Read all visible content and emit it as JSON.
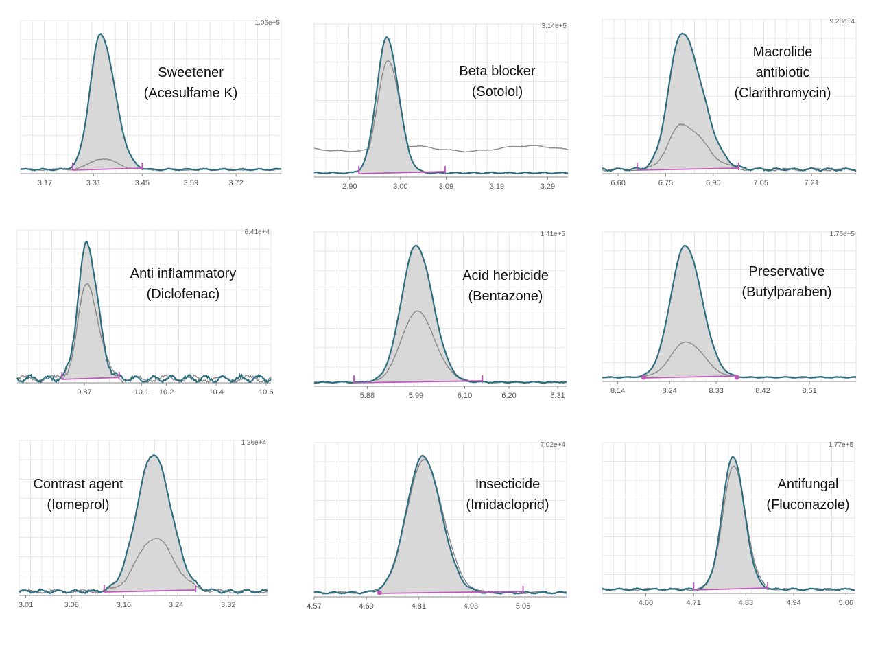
{
  "colors": {
    "trace_primary": "#2e6e80",
    "trace_secondary": "#8a8a8a",
    "peak_fill": "#d8d8d8",
    "baseline": "#c05ab8",
    "grid": "#e6e6e6",
    "axis": "#888888"
  },
  "chart_data": [
    {
      "type": "line",
      "title_lines": [
        "Sweetener",
        "(Acesulfame K)"
      ],
      "ymax_label": "1.06e+5",
      "xlim": [
        3.1,
        3.85
      ],
      "xticks": [
        "3.17",
        "3.31",
        "3.45",
        "3.59",
        "3.72"
      ],
      "peak": {
        "rt": 3.33,
        "sigma": 0.03,
        "tail": 1.35,
        "primary_height": 1.0,
        "secondary_height": 0.08
      },
      "integration": {
        "start": 3.25,
        "end": 3.45,
        "markers": "bar"
      },
      "noise": 0.005
    },
    {
      "type": "line",
      "title_lines": [
        "Beta blocker",
        "(Sotolol)"
      ],
      "ymax_label": "3.14e+5",
      "xlim": [
        2.83,
        3.33
      ],
      "xticks": [
        "2.90",
        "3.00",
        "3.09",
        "3.19",
        "3.29"
      ],
      "peak": {
        "rt": 2.973,
        "sigma": 0.02,
        "tail": 1.15,
        "primary_height": 1.0,
        "secondary_height": 0.83
      },
      "secondary_offset": 0.18,
      "integration": {
        "start": 2.918,
        "end": 3.088,
        "markers": "bar"
      },
      "noise": 0.004
    },
    {
      "type": "line",
      "title_lines": [
        "Macrolide",
        "antibiotic",
        "(Clarithromycin)"
      ],
      "ymax_label": "9.28e+4",
      "xlim": [
        6.55,
        7.35
      ],
      "xticks": [
        "6.60",
        "6.75",
        "6.90",
        "7.05",
        "7.21"
      ],
      "peak": {
        "rt": 6.8,
        "sigma": 0.04,
        "tail": 1.6,
        "primary_height": 1.0,
        "secondary_height": 0.33
      },
      "integration": {
        "start": 6.66,
        "end": 6.98,
        "markers": "bar"
      },
      "noise": 0.008
    },
    {
      "type": "line",
      "title_lines": [
        "Anti inflammatory",
        "(Diclofenac)"
      ],
      "ymax_label": "6.41e+4",
      "xlim": [
        9.6,
        10.62
      ],
      "xticks": [
        "9.87",
        "10.1",
        "10.2",
        "10.4",
        "10.6"
      ],
      "peak": {
        "rt": 9.88,
        "sigma": 0.035,
        "tail": 1.2,
        "primary_height": 1.0,
        "secondary_height": 0.7
      },
      "integration": {
        "start": 9.78,
        "end": 10.01,
        "markers": "bar"
      },
      "noise": 0.02
    },
    {
      "type": "line",
      "title_lines": [
        "Acid herbicide",
        "(Bentazone)"
      ],
      "ymax_label": "1.41e+5",
      "xlim": [
        5.76,
        6.33
      ],
      "xticks": [
        "5.88",
        "5.99",
        "6.10",
        "6.20",
        "6.31"
      ],
      "peak": {
        "rt": 5.99,
        "sigma": 0.033,
        "tail": 1.15,
        "primary_height": 1.0,
        "secondary_height": 0.52
      },
      "integration": {
        "start": 5.85,
        "end": 6.14,
        "markers": "bar"
      },
      "noise": 0.004
    },
    {
      "type": "line",
      "title_lines": [
        "Preservative",
        "(Butylparaben)"
      ],
      "ymax_label": "1.76e+5",
      "xlim": [
        8.11,
        8.6
      ],
      "xticks": [
        "8.14",
        "8.24",
        "8.33",
        "8.42",
        "8.51"
      ],
      "peak": {
        "rt": 8.27,
        "sigma": 0.028,
        "tail": 1.15,
        "primary_height": 1.0,
        "secondary_height": 0.27
      },
      "integration": {
        "start": 8.19,
        "end": 8.37,
        "markers": "dot"
      },
      "noise": 0.003
    },
    {
      "type": "line",
      "title_lines": [
        "Contrast agent",
        "(Iomeprol)"
      ],
      "ymax_label": "1.26e+4",
      "xlim": [
        3.0,
        3.38
      ],
      "xticks": [
        "3.01",
        "3.08",
        "3.16",
        "3.24",
        "3.32"
      ],
      "peak": {
        "rt": 3.205,
        "sigma": 0.025,
        "tail": 1.1,
        "primary_height": 1.0,
        "secondary_height": 0.39
      },
      "integration": {
        "start": 3.13,
        "end": 3.27,
        "markers": "bar"
      },
      "noise": 0.01
    },
    {
      "type": "line",
      "title_lines": [
        "Insecticide",
        "(Imidacloprid)"
      ],
      "ymax_label": "7.02e+4",
      "xlim": [
        4.57,
        5.15
      ],
      "xticks": [
        "4.57",
        "4.69",
        "4.81",
        "4.93",
        "5.05"
      ],
      "peak": {
        "rt": 4.82,
        "sigma": 0.038,
        "tail": 1.1,
        "primary_height": 1.0,
        "secondary_height": 0.97
      },
      "integration": {
        "start": 4.72,
        "end": 5.05,
        "markers": "dot-bar"
      },
      "noise": 0.006
    },
    {
      "type": "line",
      "title_lines": [
        "Antifungal",
        "(Fluconazole)"
      ],
      "ymax_label": "1.77e+5",
      "xlim": [
        4.5,
        5.08
      ],
      "xticks": [
        "4.60",
        "4.71",
        "4.83",
        "4.94",
        "5.06"
      ],
      "peak": {
        "rt": 4.8,
        "sigma": 0.024,
        "tail": 1.1,
        "primary_height": 1.0,
        "secondary_height": 0.92
      },
      "integration": {
        "start": 4.71,
        "end": 4.88,
        "markers": "bar"
      },
      "noise": 0.006
    }
  ]
}
